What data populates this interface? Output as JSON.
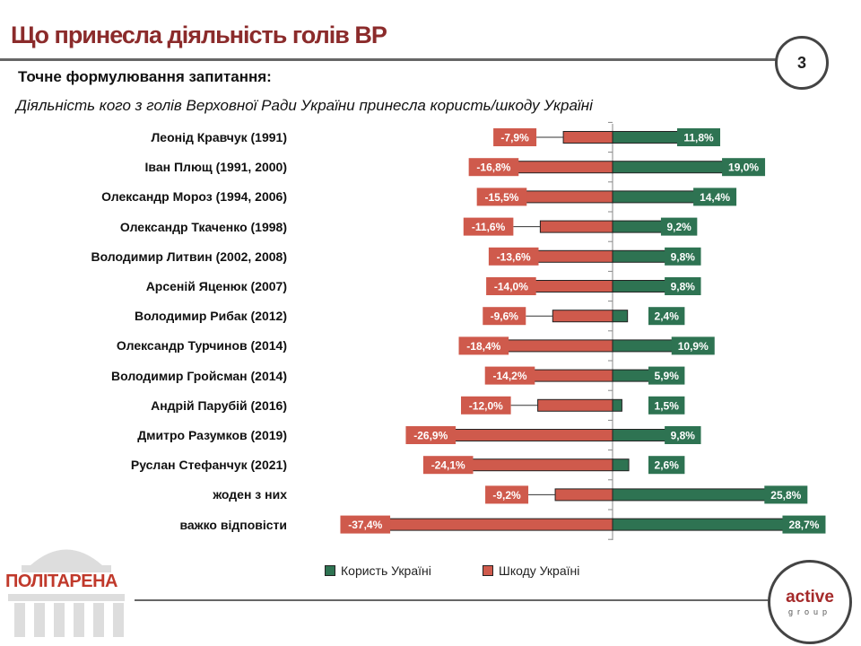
{
  "header": {
    "title": "Що принесла діяльність голів ВР",
    "page_number": "3"
  },
  "subtitle": "Точне формулювання запитання:",
  "question": "Діяльність кого з голів Верховної Ради України принесла користь/шкоду Україні",
  "logos": {
    "left": "ПОЛІТАРЕНА",
    "right_main": "active",
    "right_sub": "group"
  },
  "chart_data": {
    "type": "bar",
    "orientation": "horizontal",
    "categories": [
      "Леонід Кравчук (1991)",
      "Іван Плющ (1991, 2000)",
      "Олександр Мороз (1994, 2006)",
      "Олександр Ткаченко (1998)",
      "Володимир Литвин (2002, 2008)",
      "Арсеній Яценюк (2007)",
      "Володимир Рибак (2012)",
      "Олександр Турчинов (2014)",
      "Володимир Гройсман (2014)",
      "Андрій Парубій (2016)",
      "Дмитро Разумков (2019)",
      "Руслан Стефанчук (2021)",
      "жоден з них",
      "важко відповісти"
    ],
    "series": [
      {
        "name": "Користь Україні",
        "color": "#2e7352",
        "values": [
          11.8,
          19.0,
          14.4,
          9.2,
          9.8,
          9.8,
          2.4,
          10.9,
          5.9,
          1.5,
          9.8,
          2.6,
          25.8,
          28.7
        ],
        "labels": [
          "11,8%",
          "19,0%",
          "14,4%",
          "9,2%",
          "9,8%",
          "9,8%",
          "2,4%",
          "10,9%",
          "5,9%",
          "1,5%",
          "9,8%",
          "2,6%",
          "25,8%",
          "28,7%"
        ]
      },
      {
        "name": "Шкоду Україні",
        "color": "#cf5a4c",
        "values": [
          -7.9,
          -16.8,
          -15.5,
          -11.6,
          -13.6,
          -14.0,
          -9.6,
          -18.4,
          -14.2,
          -12.0,
          -26.9,
          -24.1,
          -9.2,
          -37.4
        ],
        "labels": [
          "-7,9%",
          "-16,8%",
          "-15,5%",
          "-11,6%",
          "-13,6%",
          "-14,0%",
          "-9,6%",
          "-18,4%",
          "-14,2%",
          "-12,0%",
          "-26,9%",
          "-24,1%",
          "-9,2%",
          "-37,4%"
        ]
      }
    ],
    "legend_position": "bottom",
    "grid": false
  }
}
